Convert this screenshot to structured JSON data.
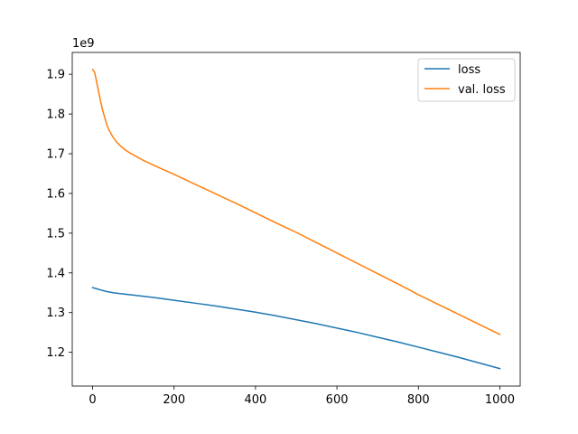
{
  "chart_data": {
    "type": "line",
    "title": "",
    "xlabel": "",
    "ylabel": "",
    "xlim": [
      -50,
      1050
    ],
    "ylim": [
      1.115,
      1.955
    ],
    "y_offset_text": "1e9",
    "y_scale": 1000000000,
    "x_ticks": [
      0,
      200,
      400,
      600,
      800,
      1000
    ],
    "y_ticks": [
      1.2,
      1.3,
      1.4,
      1.5,
      1.6,
      1.7,
      1.8,
      1.9
    ],
    "x_tick_labels": [
      "0",
      "200",
      "400",
      "600",
      "800",
      "1000"
    ],
    "y_tick_labels": [
      "1.2",
      "1.3",
      "1.4",
      "1.5",
      "1.6",
      "1.7",
      "1.8",
      "1.9"
    ],
    "grid": false,
    "legend_position": "top-right",
    "series": [
      {
        "name": "loss",
        "color": "#1f77b4",
        "x": [
          0,
          10,
          20,
          30,
          40,
          50,
          75,
          100,
          150,
          200,
          250,
          300,
          350,
          400,
          450,
          500,
          550,
          600,
          650,
          700,
          750,
          800,
          850,
          900,
          950,
          1000
        ],
        "y": [
          1.363,
          1.36,
          1.357,
          1.354,
          1.352,
          1.35,
          1.347,
          1.344,
          1.338,
          1.331,
          1.324,
          1.317,
          1.309,
          1.301,
          1.292,
          1.282,
          1.272,
          1.261,
          1.25,
          1.238,
          1.226,
          1.213,
          1.2,
          1.187,
          1.173,
          1.159
        ]
      },
      {
        "name": "val. loss",
        "color": "#ff7f0e",
        "x": [
          0,
          5,
          10,
          15,
          20,
          25,
          30,
          35,
          40,
          50,
          60,
          70,
          80,
          90,
          100,
          125,
          150,
          200,
          250,
          300,
          350,
          400,
          450,
          500,
          550,
          600,
          650,
          700,
          750,
          800,
          850,
          900,
          950,
          1000
        ],
        "y": [
          1.912,
          1.905,
          1.88,
          1.855,
          1.83,
          1.808,
          1.79,
          1.773,
          1.76,
          1.742,
          1.728,
          1.718,
          1.71,
          1.703,
          1.697,
          1.683,
          1.671,
          1.648,
          1.624,
          1.6,
          1.576,
          1.551,
          1.526,
          1.502,
          1.476,
          1.45,
          1.424,
          1.398,
          1.372,
          1.345,
          1.32,
          1.295,
          1.27,
          1.245
        ]
      }
    ]
  }
}
